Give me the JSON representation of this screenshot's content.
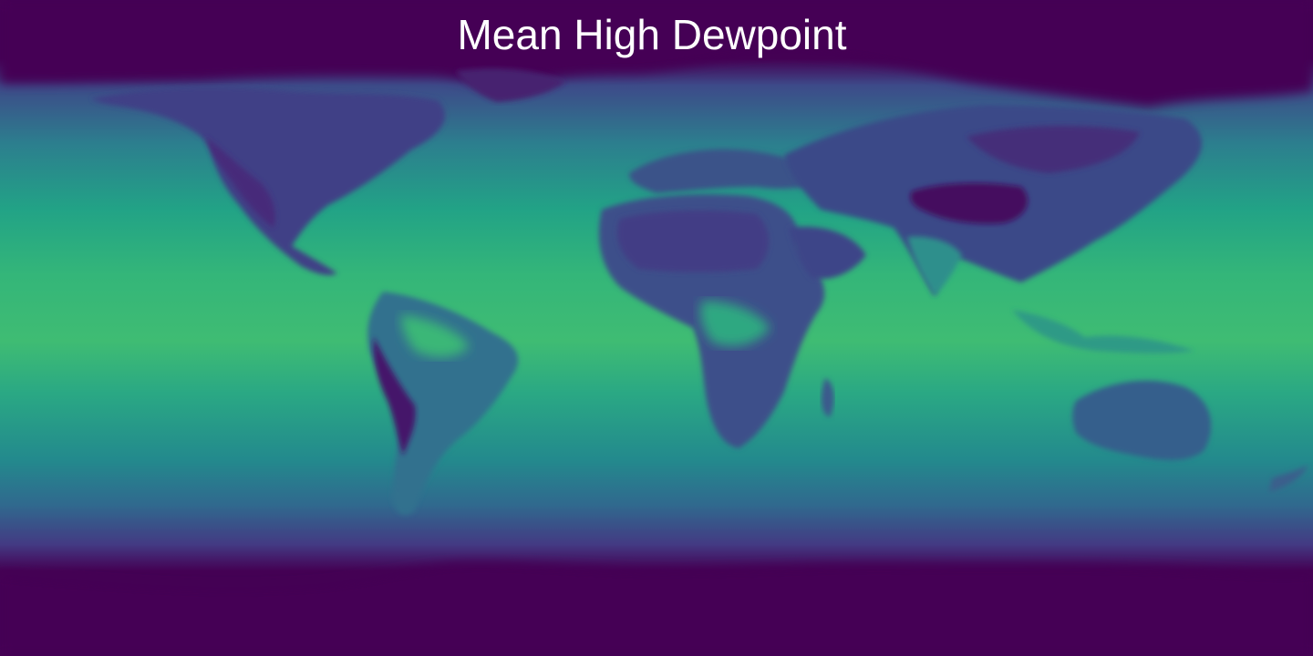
{
  "map": {
    "title": "Mean High Dewpoint",
    "projection": "equirectangular",
    "colormap": "viridis",
    "colors": {
      "low": "#440154",
      "mid_low": "#3b528b",
      "mid": "#21918c",
      "mid_high": "#3bbb75",
      "high": "#5ec962"
    }
  }
}
